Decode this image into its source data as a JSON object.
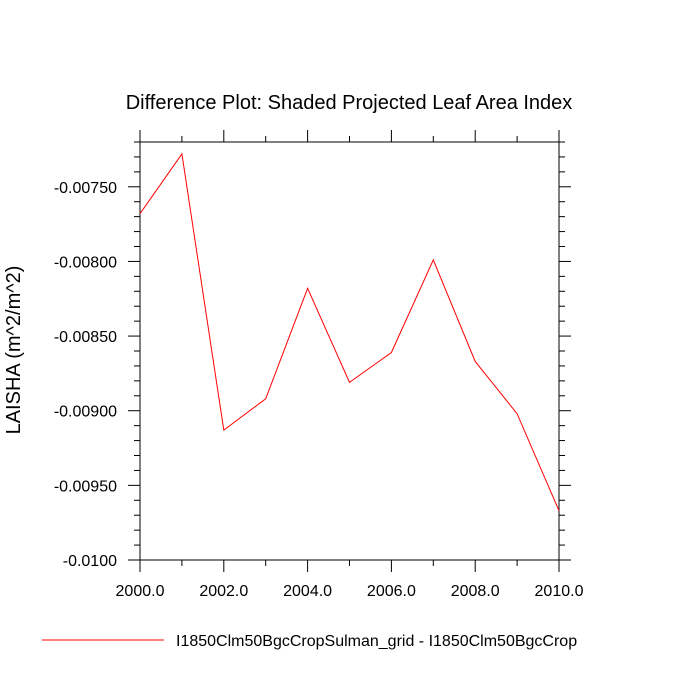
{
  "chart_data": {
    "type": "line",
    "title": "Difference Plot: Shaded Projected Leaf Area Index",
    "xlabel": "",
    "ylabel": "LAISHA  (m^2/m^2)",
    "xlim": [
      2000,
      2010
    ],
    "ylim": [
      -0.01,
      -0.0072
    ],
    "x_ticks": [
      2000,
      2002,
      2004,
      2006,
      2008,
      2010
    ],
    "x_tick_labels": [
      "2000.0",
      "2002.0",
      "2004.0",
      "2006.0",
      "2008.0",
      "2010.0"
    ],
    "y_ticks": [
      -0.0075,
      -0.008,
      -0.0085,
      -0.009,
      -0.0095,
      -0.01
    ],
    "y_tick_labels": [
      "-0.00750",
      "-0.00800",
      "-0.00850",
      "-0.00900",
      "-0.00950",
      "-0.0100"
    ],
    "grid": false,
    "legend_position": "bottom",
    "series": [
      {
        "name": "I1850Clm50BgcCropSulman_grid - I1850Clm50BgcCrop",
        "color": "#ff0000",
        "x": [
          2000,
          2001,
          2002,
          2003,
          2004,
          2005,
          2006,
          2007,
          2008,
          2009,
          2010
        ],
        "y": [
          -0.00768,
          -0.00728,
          -0.00913,
          -0.00892,
          -0.00818,
          -0.00881,
          -0.00861,
          -0.00799,
          -0.00867,
          -0.00902,
          -0.00967
        ]
      }
    ]
  }
}
